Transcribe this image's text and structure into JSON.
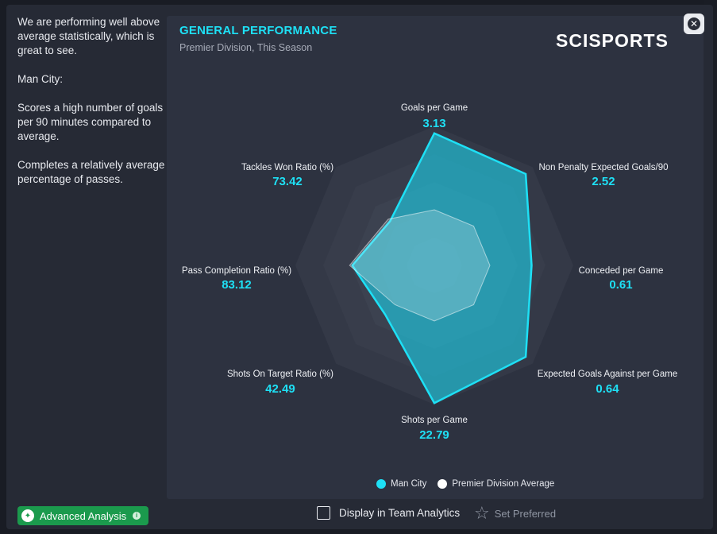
{
  "left_text": {
    "p1": "We are performing well above average statistically, which is great to see.",
    "p2": "Man City:",
    "p3": "Scores a high number of goals per 90 minutes compared to average.",
    "p4": "Completes a relatively average percentage of passes."
  },
  "panel": {
    "title": "GENERAL PERFORMANCE",
    "subtitle": "Premier Division, This Season",
    "logo": "SCISPORTS"
  },
  "chart_data": {
    "type": "radar",
    "axes": [
      {
        "label": "Goals per Game",
        "value": "3.13"
      },
      {
        "label": "Non Penalty Expected Goals/90",
        "value": "2.52"
      },
      {
        "label": "Conceded per Game",
        "value": "0.61"
      },
      {
        "label": "Expected Goals Against per Game",
        "value": "0.64"
      },
      {
        "label": "Shots per Game",
        "value": "22.79"
      },
      {
        "label": "Shots On Target Ratio (%)",
        "value": "42.49"
      },
      {
        "label": "Pass Completion Ratio (%)",
        "value": "83.12"
      },
      {
        "label": "Tackles Won Ratio (%)",
        "value": "73.42"
      }
    ],
    "series": [
      {
        "name": "Man City",
        "color": "#1ee0f5",
        "values": [
          0.95,
          0.93,
          0.7,
          0.93,
          0.99,
          0.5,
          0.59,
          0.45
        ]
      },
      {
        "name": "Premier Division Average",
        "color": "#ffffff",
        "values": [
          0.4,
          0.4,
          0.4,
          0.4,
          0.4,
          0.4,
          0.61,
          0.47
        ]
      }
    ],
    "rings": 5
  },
  "legend": {
    "man_city": "Man City",
    "average": "Premier Division Average"
  },
  "footer": {
    "advanced_analysis": "Advanced Analysis",
    "display_team_analytics": "Display in Team Analytics",
    "set_preferred": "Set Preferred"
  },
  "icons": {
    "close": "close-icon",
    "star": "star-icon",
    "advanced": "analysis-icon"
  }
}
